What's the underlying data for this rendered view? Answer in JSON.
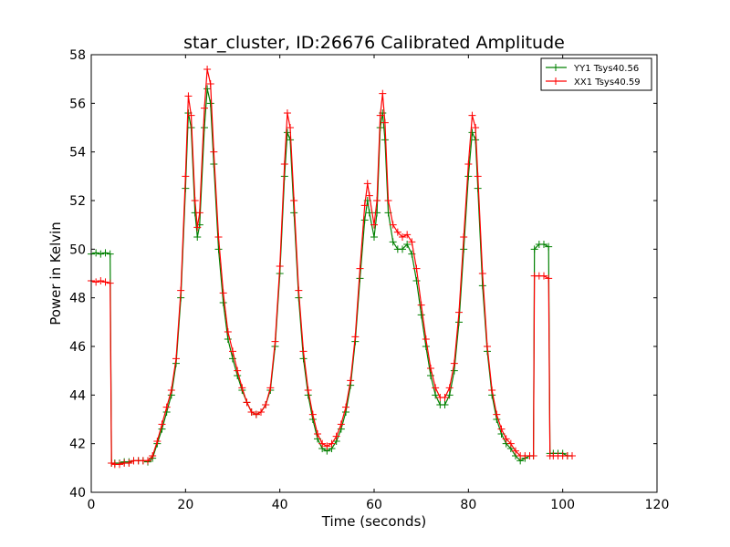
{
  "chart_data": {
    "type": "line",
    "title": "star_cluster, ID:26676 Calibrated Amplitude",
    "xlabel": "Time (seconds)",
    "ylabel": "Power in Kelvin",
    "xlim": [
      0,
      120
    ],
    "ylim": [
      40,
      58
    ],
    "xticks": [
      0,
      20,
      40,
      60,
      80,
      100,
      120
    ],
    "yticks": [
      40,
      42,
      44,
      46,
      48,
      50,
      52,
      54,
      56,
      58
    ],
    "grid": false,
    "legend_position": "top-right",
    "marker": "+",
    "series": [
      {
        "name": "YY1 Tsys40.56",
        "color": "#008000",
        "points": [
          [
            0,
            49.8
          ],
          [
            1,
            49.85
          ],
          [
            2,
            49.8
          ],
          [
            3,
            49.85
          ],
          [
            4,
            49.8
          ],
          [
            4.3,
            41.2
          ],
          [
            5,
            41.2
          ],
          [
            6,
            41.2
          ],
          [
            7,
            41.25
          ],
          [
            8,
            41.25
          ],
          [
            9,
            41.3
          ],
          [
            10,
            41.3
          ],
          [
            11,
            41.3
          ],
          [
            12,
            41.25
          ],
          [
            13,
            41.4
          ],
          [
            14,
            42.0
          ],
          [
            15,
            42.6
          ],
          [
            16,
            43.3
          ],
          [
            17,
            44.0
          ],
          [
            18,
            45.3
          ],
          [
            19,
            48.0
          ],
          [
            20,
            52.5
          ],
          [
            20.6,
            55.6
          ],
          [
            21.2,
            55.0
          ],
          [
            22,
            51.5
          ],
          [
            22.5,
            50.5
          ],
          [
            23,
            51.0
          ],
          [
            24,
            55.0
          ],
          [
            24.6,
            56.6
          ],
          [
            25.3,
            56.0
          ],
          [
            26,
            53.5
          ],
          [
            27,
            50.0
          ],
          [
            28,
            47.8
          ],
          [
            29,
            46.3
          ],
          [
            30,
            45.5
          ],
          [
            31,
            44.8
          ],
          [
            32,
            44.2
          ],
          [
            33,
            43.7
          ],
          [
            34,
            43.3
          ],
          [
            35,
            43.2
          ],
          [
            36,
            43.3
          ],
          [
            37,
            43.6
          ],
          [
            38,
            44.2
          ],
          [
            39,
            46.0
          ],
          [
            40,
            49.0
          ],
          [
            41,
            53.0
          ],
          [
            41.6,
            54.8
          ],
          [
            42.2,
            54.5
          ],
          [
            43,
            51.5
          ],
          [
            44,
            48.0
          ],
          [
            45,
            45.5
          ],
          [
            46,
            44.0
          ],
          [
            47,
            43.0
          ],
          [
            48,
            42.2
          ],
          [
            49,
            41.8
          ],
          [
            50,
            41.7
          ],
          [
            51,
            41.8
          ],
          [
            52,
            42.1
          ],
          [
            53,
            42.6
          ],
          [
            54,
            43.3
          ],
          [
            55,
            44.4
          ],
          [
            56,
            46.2
          ],
          [
            57,
            48.8
          ],
          [
            58,
            51.2
          ],
          [
            58.6,
            52.0
          ],
          [
            59,
            51.5
          ],
          [
            60,
            50.5
          ],
          [
            60.6,
            51.5
          ],
          [
            61.3,
            55.0
          ],
          [
            61.8,
            55.6
          ],
          [
            62.3,
            54.5
          ],
          [
            63,
            51.5
          ],
          [
            64,
            50.3
          ],
          [
            65,
            50.0
          ],
          [
            66,
            50.0
          ],
          [
            67,
            50.2
          ],
          [
            68,
            49.8
          ],
          [
            69,
            48.7
          ],
          [
            70,
            47.3
          ],
          [
            71,
            46.0
          ],
          [
            72,
            44.8
          ],
          [
            73,
            44.0
          ],
          [
            74,
            43.6
          ],
          [
            75,
            43.6
          ],
          [
            76,
            44.0
          ],
          [
            77,
            45.0
          ],
          [
            78,
            47.0
          ],
          [
            79,
            50.0
          ],
          [
            80,
            53.0
          ],
          [
            80.8,
            54.8
          ],
          [
            81.5,
            54.5
          ],
          [
            82,
            52.5
          ],
          [
            83,
            48.5
          ],
          [
            84,
            45.8
          ],
          [
            85,
            44.0
          ],
          [
            86,
            43.0
          ],
          [
            87,
            42.4
          ],
          [
            88,
            42.0
          ],
          [
            89,
            41.8
          ],
          [
            90,
            41.5
          ],
          [
            91,
            41.3
          ],
          [
            92,
            41.4
          ],
          [
            93,
            41.5
          ],
          [
            93.8,
            41.5
          ],
          [
            94,
            50.0
          ],
          [
            95,
            50.2
          ],
          [
            96,
            50.2
          ],
          [
            97,
            50.1
          ],
          [
            97.3,
            41.6
          ],
          [
            98,
            41.6
          ],
          [
            99,
            41.6
          ],
          [
            100,
            41.6
          ],
          [
            101,
            41.5
          ],
          [
            102,
            41.5
          ]
        ]
      },
      {
        "name": "XX1 Tsys40.59",
        "color": "#ff0000",
        "points": [
          [
            0,
            48.7
          ],
          [
            1,
            48.65
          ],
          [
            2,
            48.7
          ],
          [
            3,
            48.65
          ],
          [
            4,
            48.6
          ],
          [
            4.3,
            41.2
          ],
          [
            5,
            41.15
          ],
          [
            6,
            41.15
          ],
          [
            7,
            41.2
          ],
          [
            8,
            41.2
          ],
          [
            9,
            41.3
          ],
          [
            10,
            41.3
          ],
          [
            11,
            41.3
          ],
          [
            12,
            41.3
          ],
          [
            13,
            41.5
          ],
          [
            14,
            42.1
          ],
          [
            15,
            42.8
          ],
          [
            16,
            43.5
          ],
          [
            17,
            44.2
          ],
          [
            18,
            45.5
          ],
          [
            19,
            48.3
          ],
          [
            20,
            53.0
          ],
          [
            20.6,
            56.3
          ],
          [
            21.2,
            55.5
          ],
          [
            22,
            52.0
          ],
          [
            22.5,
            50.9
          ],
          [
            23,
            51.5
          ],
          [
            24,
            55.8
          ],
          [
            24.6,
            57.4
          ],
          [
            25.3,
            56.8
          ],
          [
            26,
            54.0
          ],
          [
            27,
            50.5
          ],
          [
            28,
            48.2
          ],
          [
            29,
            46.6
          ],
          [
            30,
            45.8
          ],
          [
            31,
            45.0
          ],
          [
            32,
            44.3
          ],
          [
            33,
            43.7
          ],
          [
            34,
            43.3
          ],
          [
            35,
            43.2
          ],
          [
            36,
            43.3
          ],
          [
            37,
            43.6
          ],
          [
            38,
            44.3
          ],
          [
            39,
            46.2
          ],
          [
            40,
            49.3
          ],
          [
            41,
            53.5
          ],
          [
            41.6,
            55.6
          ],
          [
            42.2,
            55.0
          ],
          [
            43,
            52.0
          ],
          [
            44,
            48.3
          ],
          [
            45,
            45.8
          ],
          [
            46,
            44.2
          ],
          [
            47,
            43.2
          ],
          [
            48,
            42.4
          ],
          [
            49,
            42.0
          ],
          [
            50,
            41.9
          ],
          [
            51,
            42.0
          ],
          [
            52,
            42.3
          ],
          [
            53,
            42.8
          ],
          [
            54,
            43.5
          ],
          [
            55,
            44.6
          ],
          [
            56,
            46.4
          ],
          [
            57,
            49.2
          ],
          [
            58,
            51.8
          ],
          [
            58.6,
            52.7
          ],
          [
            59,
            52.2
          ],
          [
            60,
            51.0
          ],
          [
            60.6,
            52.0
          ],
          [
            61.3,
            55.5
          ],
          [
            61.8,
            56.4
          ],
          [
            62.3,
            55.2
          ],
          [
            63,
            52.0
          ],
          [
            64,
            51.0
          ],
          [
            65,
            50.7
          ],
          [
            66,
            50.5
          ],
          [
            67,
            50.6
          ],
          [
            68,
            50.3
          ],
          [
            69,
            49.2
          ],
          [
            70,
            47.7
          ],
          [
            71,
            46.3
          ],
          [
            72,
            45.1
          ],
          [
            73,
            44.3
          ],
          [
            74,
            43.9
          ],
          [
            75,
            43.9
          ],
          [
            76,
            44.3
          ],
          [
            77,
            45.3
          ],
          [
            78,
            47.4
          ],
          [
            79,
            50.5
          ],
          [
            80,
            53.5
          ],
          [
            80.8,
            55.5
          ],
          [
            81.5,
            55.0
          ],
          [
            82,
            53.0
          ],
          [
            83,
            49.0
          ],
          [
            84,
            46.0
          ],
          [
            85,
            44.2
          ],
          [
            86,
            43.2
          ],
          [
            87,
            42.6
          ],
          [
            88,
            42.2
          ],
          [
            89,
            42.0
          ],
          [
            90,
            41.7
          ],
          [
            91,
            41.5
          ],
          [
            92,
            41.5
          ],
          [
            93,
            41.5
          ],
          [
            93.8,
            41.5
          ],
          [
            94,
            48.9
          ],
          [
            95,
            48.9
          ],
          [
            96,
            48.9
          ],
          [
            97,
            48.8
          ],
          [
            97.3,
            41.5
          ],
          [
            98,
            41.5
          ],
          [
            99,
            41.5
          ],
          [
            100,
            41.5
          ],
          [
            101,
            41.5
          ],
          [
            102,
            41.5
          ]
        ]
      }
    ]
  }
}
